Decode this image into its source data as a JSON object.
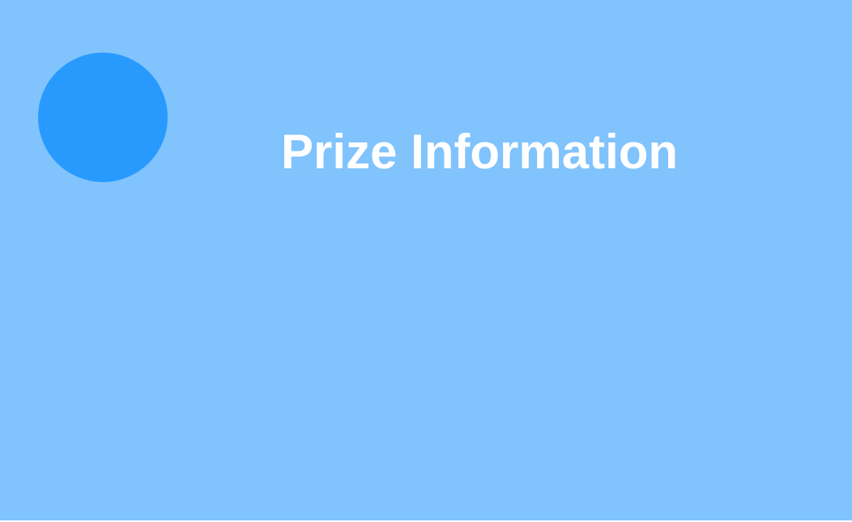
{
  "header": {
    "title": "Prize Information"
  },
  "colors": {
    "background": "#80c3fd",
    "accent_circle": "#289afd",
    "title_text": "#ffffff"
  }
}
